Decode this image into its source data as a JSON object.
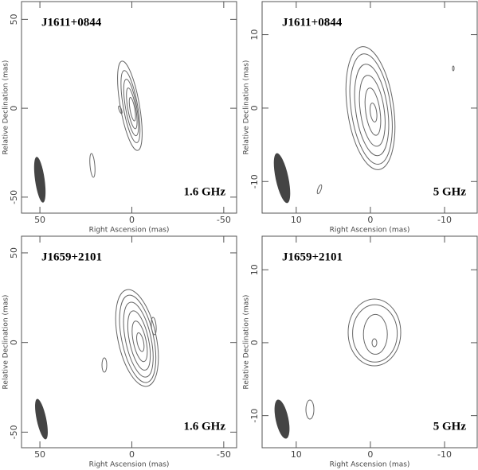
{
  "chart_data": [
    {
      "type": "contour",
      "title": "J1611+0844",
      "annotation": "1.6 GHz",
      "xlabel": "Right Ascension  (mas)",
      "ylabel": "Relative Declination  (mas)",
      "xlim": [
        60,
        -57
      ],
      "ylim": [
        -59,
        60
      ],
      "xticks": [
        50,
        0,
        -50
      ],
      "yticks": [
        50,
        0,
        -50
      ]
    },
    {
      "type": "contour",
      "title": "J1611+0844",
      "annotation": "5 GHz",
      "xlabel": "Right Ascension  (mas)",
      "ylabel": "Relative Declination  (mas)",
      "xlim": [
        14.6,
        -14.4
      ],
      "ylim": [
        -14.3,
        14.5
      ],
      "xticks": [
        10,
        0,
        -10
      ],
      "yticks": [
        10,
        0,
        -10
      ]
    },
    {
      "type": "contour",
      "title": "J1659+2101",
      "annotation": "1.6 GHz",
      "xlabel": "Right Ascension  (mas)",
      "ylabel": "Relative Declination  (mas)",
      "xlim": [
        60,
        -57
      ],
      "ylim": [
        -58.7,
        59.3
      ],
      "xticks": [
        50,
        0,
        -50
      ],
      "yticks": [
        50,
        0,
        -50
      ]
    },
    {
      "type": "contour",
      "title": "J1659+2101",
      "annotation": "5 GHz",
      "xlabel": "Right Ascension  (mas)",
      "ylabel": "Relative Declination  (mas)",
      "xlim": [
        14.6,
        -14.4
      ],
      "ylim": [
        -14.4,
        14.6
      ],
      "xticks": [
        10,
        0,
        -10
      ],
      "yticks": [
        10,
        0,
        -10
      ]
    }
  ]
}
